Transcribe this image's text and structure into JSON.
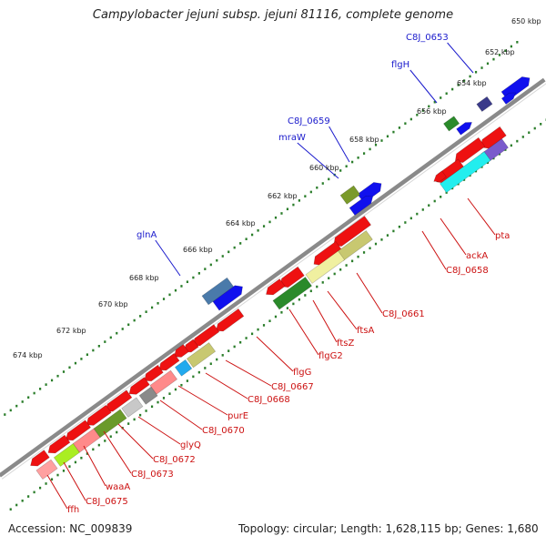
{
  "title": "Campylobacter jejuni subsp. jejuni 81116, complete genome",
  "footer": {
    "accession": "Accession: NC_009839",
    "topology": "Topology: circular; Length: 1,628,115 bp; Genes: 1,680"
  },
  "scale_labels": [
    "650 kbp",
    "652 kbp",
    "654 kbp",
    "656 kbp",
    "658 kbp",
    "660 kbp",
    "662 kbp",
    "664 kbp",
    "666 kbp",
    "668 kbp",
    "670 kbp",
    "672 kbp",
    "674 kbp"
  ],
  "forward_gene_labels": [
    "C8J_0653",
    "flgH",
    "C8J_0659",
    "mraW",
    "glnA"
  ],
  "reverse_gene_labels": [
    "pta",
    "ackA",
    "C8J_0658",
    "C8J_0661",
    "ftsA",
    "ftsZ",
    "flgG2",
    "flgG",
    "C8J_0667",
    "C8J_0668",
    "purE",
    "C8J_0670",
    "glyQ",
    "C8J_0672",
    "C8J_0673",
    "waaA",
    "C8J_0675",
    "ffh"
  ],
  "colors": {
    "backbone": "#8a8a8a",
    "forward_gene": "#1010ee",
    "reverse_gene": "#ee1111",
    "tick_dots": "#2a7d2a",
    "forward_label": "#1a1acc",
    "reverse_label": "#cc1111"
  }
}
